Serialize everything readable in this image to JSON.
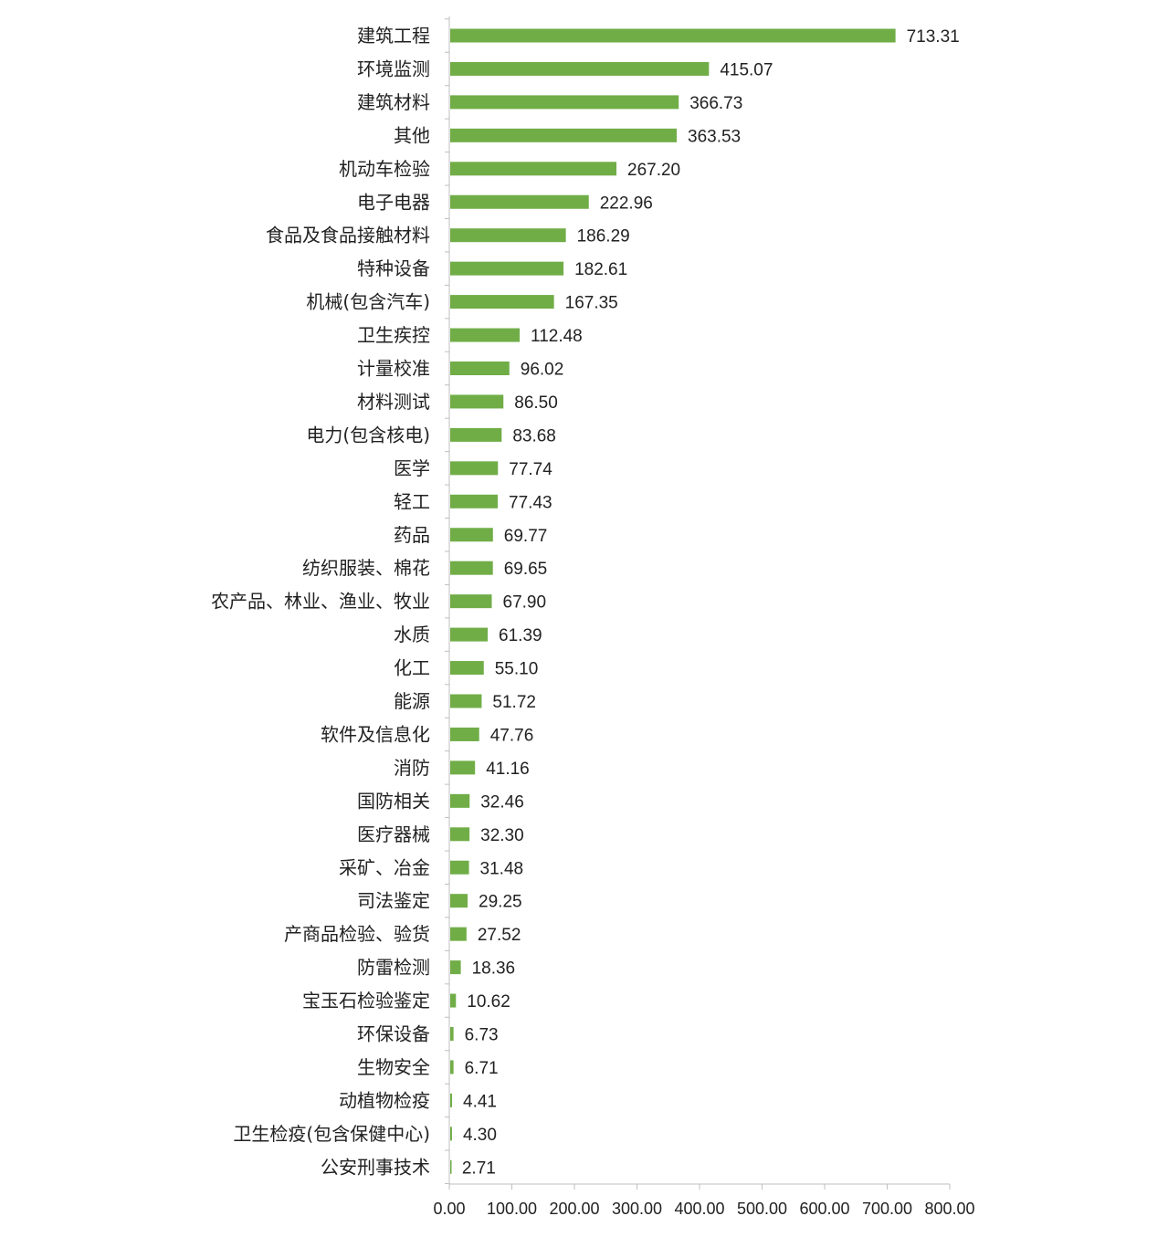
{
  "chart_data": {
    "type": "bar",
    "orientation": "horizontal",
    "title": "",
    "xlabel": "",
    "ylabel": "",
    "categories": [
      "建筑工程",
      "环境监测",
      "建筑材料",
      "其他",
      "机动车检验",
      "电子电器",
      "食品及食品接触材料",
      "特种设备",
      "机械(包含汽车)",
      "卫生疾控",
      "计量校准",
      "材料测试",
      "电力(包含核电)",
      "医学",
      "轻工",
      "药品",
      "纺织服装、棉花",
      "农产品、林业、渔业、牧业",
      "水质",
      "化工",
      "能源",
      "软件及信息化",
      "消防",
      "国防相关",
      "医疗器械",
      "采矿、冶金",
      "司法鉴定",
      "产商品检验、验货",
      "防雷检测",
      "宝玉石检验鉴定",
      "环保设备",
      "生物安全",
      "动植物检疫",
      "卫生检疫(包含保健中心)",
      "公安刑事技术"
    ],
    "values": [
      713.31,
      415.07,
      366.73,
      363.53,
      267.2,
      222.96,
      186.29,
      182.61,
      167.35,
      112.48,
      96.02,
      86.5,
      83.68,
      77.74,
      77.43,
      69.77,
      69.65,
      67.9,
      61.39,
      55.1,
      51.72,
      47.76,
      41.16,
      32.46,
      32.3,
      31.48,
      29.25,
      27.52,
      18.36,
      10.62,
      6.73,
      6.71,
      4.41,
      4.3,
      2.71
    ],
    "value_labels": [
      "713.31",
      "415.07",
      "366.73",
      "363.53",
      "267.20",
      "222.96",
      "186.29",
      "182.61",
      "167.35",
      "112.48",
      "96.02",
      "86.50",
      "83.68",
      "77.74",
      "77.43",
      "69.77",
      "69.65",
      "67.90",
      "61.39",
      "55.10",
      "51.72",
      "47.76",
      "41.16",
      "32.46",
      "32.30",
      "31.48",
      "29.25",
      "27.52",
      "18.36",
      "10.62",
      "6.73",
      "6.71",
      "4.41",
      "4.30",
      "2.71"
    ],
    "xlim": [
      0,
      800
    ],
    "x_ticks": [
      0,
      100,
      200,
      300,
      400,
      500,
      600,
      700,
      800
    ],
    "x_tick_labels": [
      "0.00",
      "100.00",
      "200.00",
      "300.00",
      "400.00",
      "500.00",
      "600.00",
      "700.00",
      "800.00"
    ],
    "grid": false,
    "legend": "none",
    "bar_color": "#70ad47",
    "axis_color": "#bfbfbf",
    "text_color": "#222222"
  }
}
